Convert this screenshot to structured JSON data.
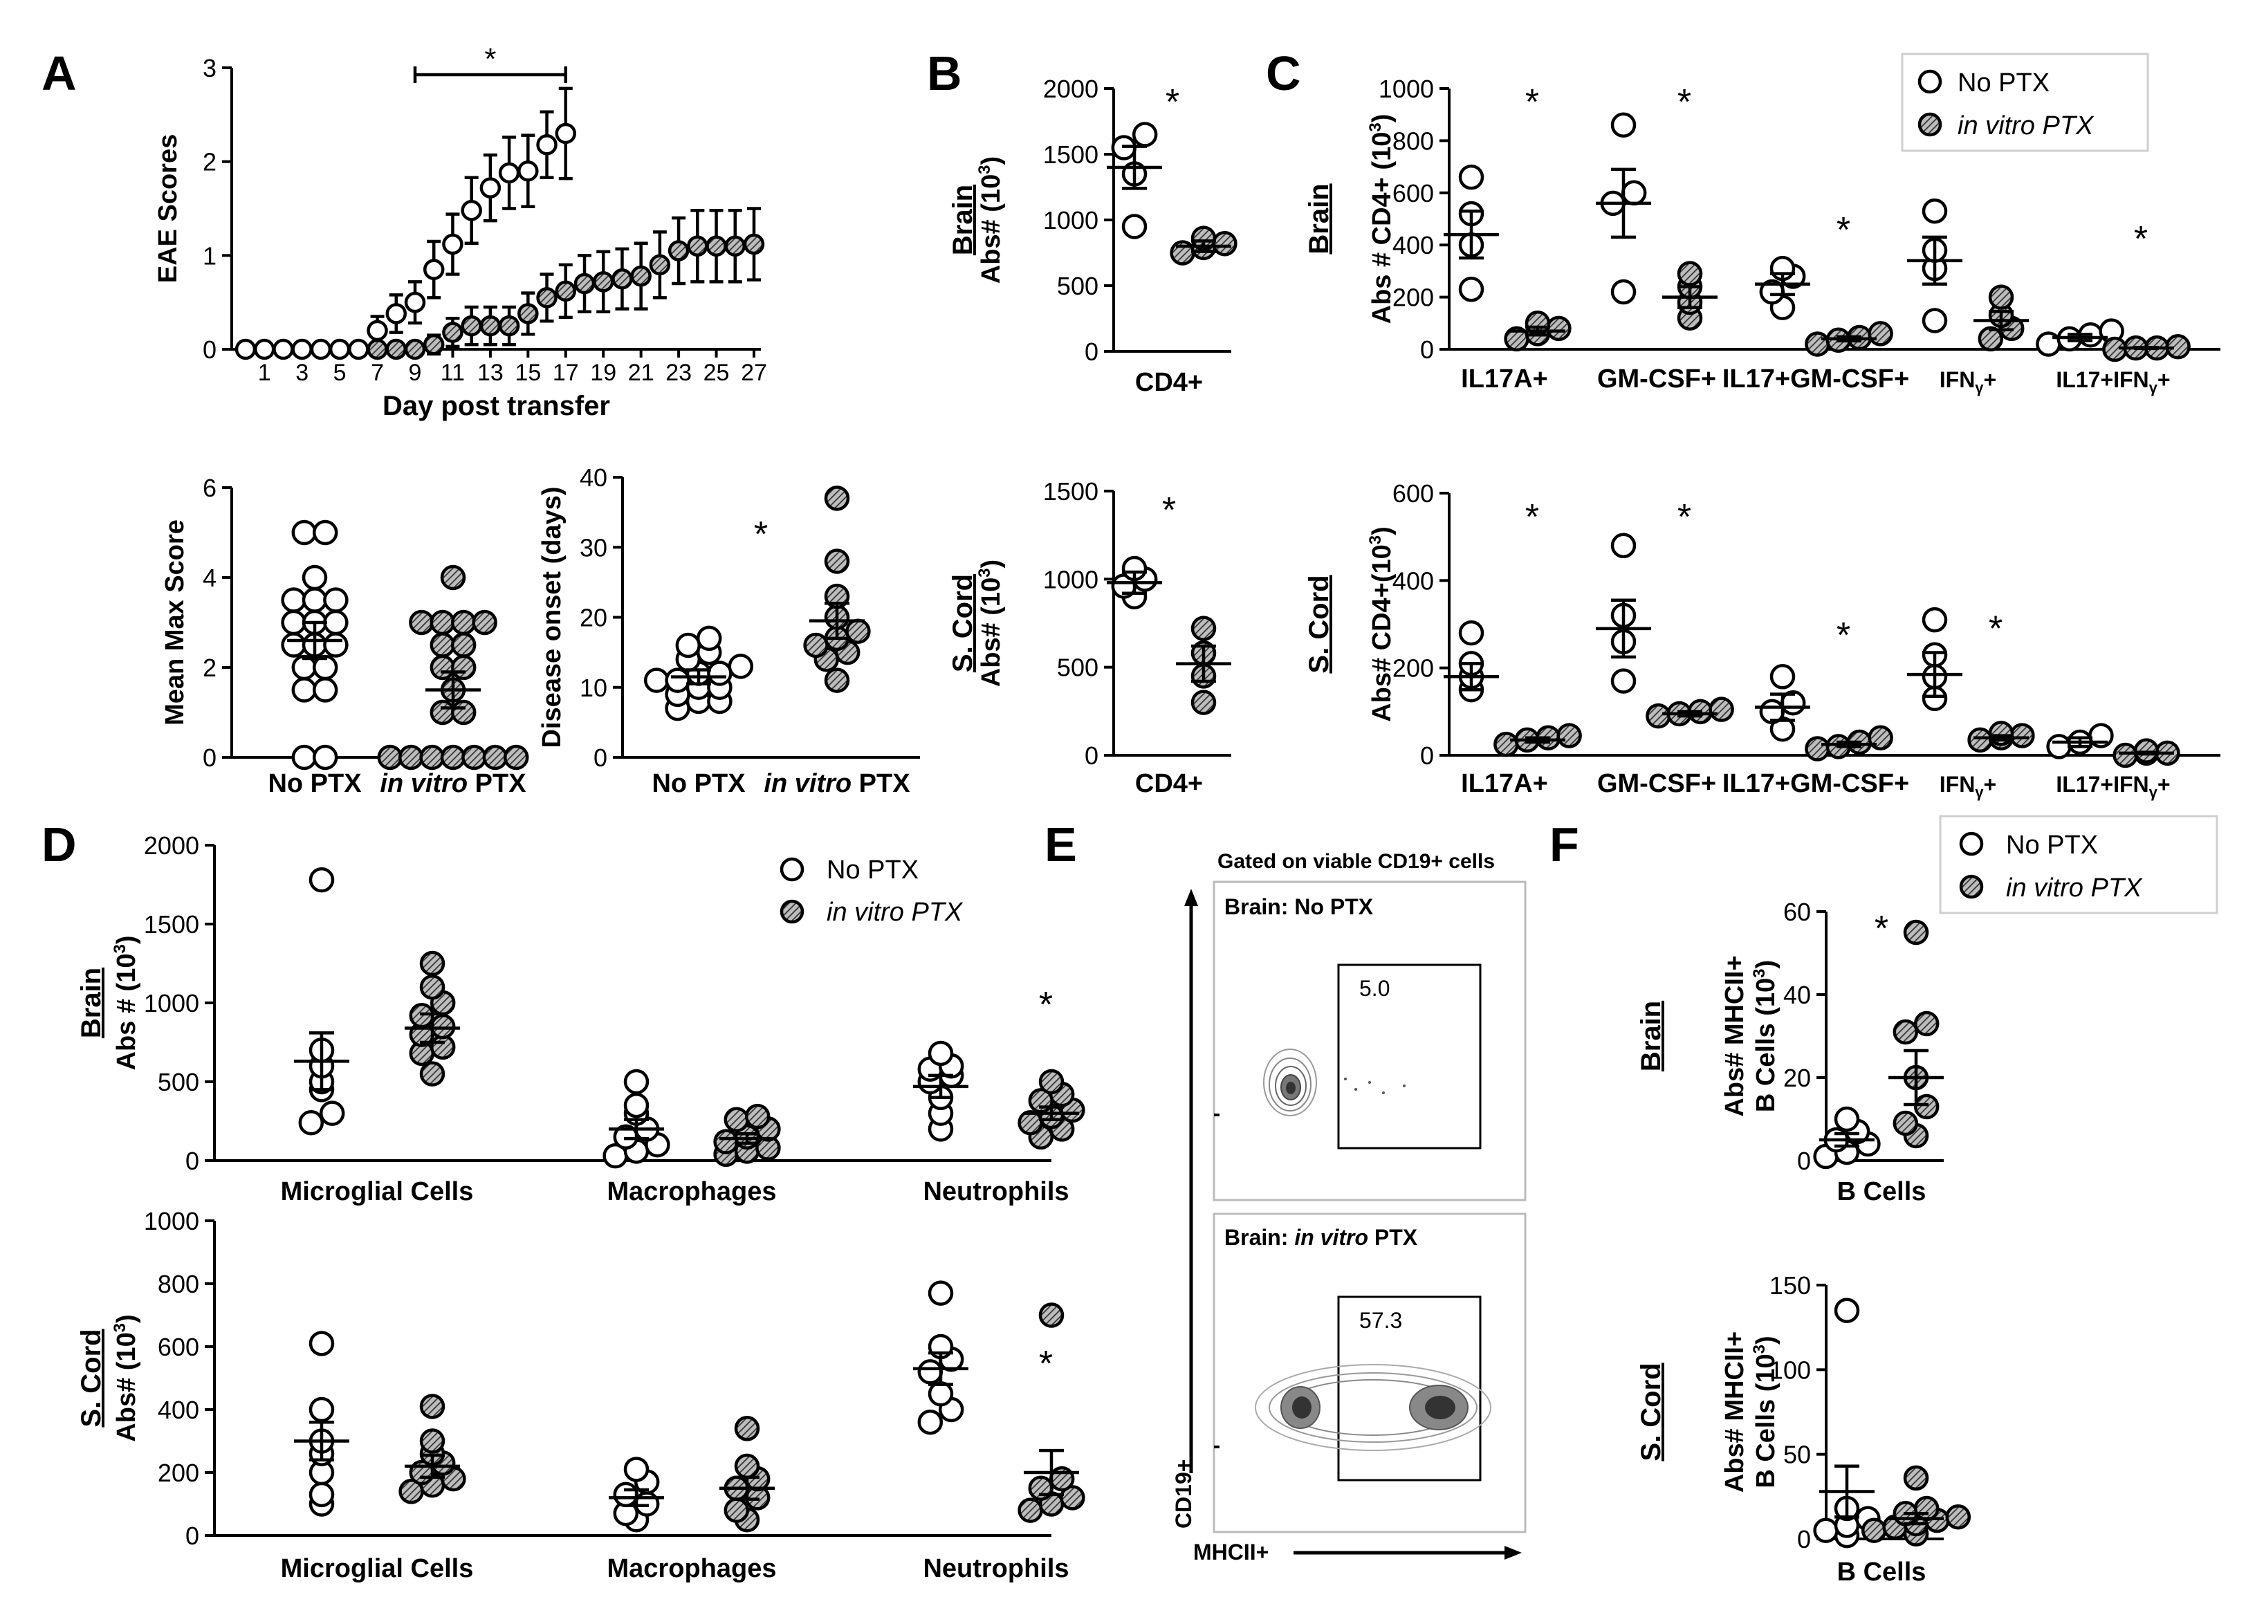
{
  "panel_letters": [
    "A",
    "B",
    "C",
    "D",
    "E",
    "F"
  ],
  "colors": {
    "open_marker": "#ffffff",
    "hatched_marker": "#5a5a5a",
    "ink": "#000000"
  },
  "legend": {
    "no_ptx": "No PTX",
    "in_vitro_ptx": "in vitro PTX"
  },
  "flow": {
    "title": "Gated on viable CD19+ cells",
    "top_label": "Brain: No PTX",
    "top_value": "5.0",
    "bottom_label": "Brain: in vitro PTX",
    "bottom_value": "57.3",
    "xlabel": "MHCII+",
    "ylabel": "CD19+"
  },
  "chart_data": [
    {
      "id": "A_time",
      "panel": "A",
      "type": "line",
      "xlabel": "Day post transfer",
      "ylabel": "EAE  Scores",
      "xticks": [
        "1",
        "3",
        "5",
        "7",
        "9",
        "11",
        "13",
        "15",
        "17",
        "19",
        "21",
        "23",
        "25",
        "27"
      ],
      "yticks": [
        "0",
        "1",
        "2",
        "3"
      ],
      "ylim": [
        0,
        3
      ],
      "series": [
        {
          "name": "No PTX",
          "marker": "open",
          "x": [
            0,
            1,
            2,
            3,
            4,
            5,
            6,
            7,
            8,
            9,
            10,
            11,
            12,
            13,
            14,
            15,
            16,
            17
          ],
          "y": [
            0,
            0,
            0,
            0,
            0,
            0,
            0,
            0.2,
            0.38,
            0.5,
            0.85,
            1.12,
            1.48,
            1.72,
            1.88,
            1.9,
            2.18,
            2.3
          ],
          "err": [
            0,
            0,
            0,
            0,
            0,
            0,
            0,
            0.15,
            0.2,
            0.22,
            0.3,
            0.32,
            0.35,
            0.35,
            0.38,
            0.38,
            0.35,
            0.48
          ]
        },
        {
          "name": "in vitro PTX",
          "marker": "hatched",
          "x": [
            7,
            8,
            9,
            10,
            11,
            12,
            13,
            14,
            15,
            16,
            17,
            18,
            19,
            20,
            21,
            22,
            23,
            24,
            25,
            26,
            27
          ],
          "y": [
            0,
            0,
            0,
            0.05,
            0.18,
            0.25,
            0.25,
            0.25,
            0.38,
            0.55,
            0.62,
            0.7,
            0.72,
            0.75,
            0.78,
            0.9,
            1.05,
            1.1,
            1.1,
            1.1,
            1.12
          ],
          "err": [
            0,
            0,
            0,
            0.1,
            0.15,
            0.2,
            0.2,
            0.2,
            0.22,
            0.25,
            0.28,
            0.3,
            0.32,
            0.32,
            0.35,
            0.35,
            0.35,
            0.38,
            0.38,
            0.38,
            0.38
          ]
        }
      ],
      "annotations": [
        {
          "text": "*",
          "x_from": 9,
          "x_to": 17
        }
      ]
    },
    {
      "id": "A_max",
      "panel": "A",
      "type": "scatter",
      "ylabel": "Mean Max  Score",
      "yticks": [
        "0",
        "2",
        "4",
        "6"
      ],
      "ylim": [
        0,
        6
      ],
      "categories": [
        "No PTX",
        "in vitro PTX"
      ],
      "groups": [
        {
          "category": "No PTX",
          "marker": "open",
          "mean": 2.6,
          "sem": 0.4,
          "values": [
            0,
            0,
            1.5,
            1.5,
            2,
            2,
            2.5,
            2.5,
            2.5,
            3,
            3,
            3,
            3.5,
            3.5,
            3.5,
            4,
            5,
            5
          ]
        },
        {
          "category": "in vitro PTX",
          "marker": "hatched",
          "mean": 1.5,
          "sem": 0.4,
          "values": [
            0,
            0,
            0,
            0,
            0,
            0,
            0,
            1,
            1,
            1.5,
            2,
            2,
            2.5,
            2.5,
            3,
            3,
            3,
            3,
            4
          ]
        }
      ]
    },
    {
      "id": "A_onset",
      "panel": "A",
      "type": "scatter",
      "ylabel": "Disease onset (days)",
      "yticks": [
        "0",
        "10",
        "20",
        "30",
        "40"
      ],
      "ylim": [
        0,
        40
      ],
      "categories": [
        "No PTX",
        "in vitro PTX"
      ],
      "star": "*",
      "groups": [
        {
          "category": "No PTX",
          "marker": "open",
          "mean": 11.5,
          "sem": 1,
          "values": [
            7,
            8,
            8,
            9,
            10,
            10,
            11,
            11,
            12,
            12,
            13,
            14,
            15,
            16,
            17
          ]
        },
        {
          "category": "in vitro PTX",
          "marker": "hatched",
          "mean": 19.5,
          "sem": 2.5,
          "values": [
            11,
            14,
            15,
            16,
            17,
            18,
            20,
            23,
            28,
            37
          ]
        }
      ]
    },
    {
      "id": "B_brain",
      "panel": "B",
      "type": "scatter",
      "region": "Brain",
      "ylabel": "Abs# (10",
      "yticks": [
        "0",
        "500",
        "1000",
        "1500",
        "2000"
      ],
      "ylim": [
        0,
        2000
      ],
      "categories": [
        "CD4+"
      ],
      "star": "*",
      "groups": [
        {
          "category": "CD4+",
          "marker": "open",
          "mean": 1400,
          "sem": 160,
          "values": [
            950,
            1350,
            1550,
            1650
          ]
        },
        {
          "category": "CD4+",
          "marker": "hatched",
          "mean": 800,
          "sem": 40,
          "values": [
            750,
            790,
            820,
            860
          ]
        }
      ]
    },
    {
      "id": "B_cord",
      "panel": "B",
      "type": "scatter",
      "region": "S. Cord",
      "ylabel": "Abs# (10",
      "yticks": [
        "0",
        "500",
        "1000",
        "1500"
      ],
      "ylim": [
        0,
        1500
      ],
      "categories": [
        "CD4+"
      ],
      "star": "*",
      "groups": [
        {
          "category": "CD4+",
          "marker": "open",
          "mean": 980,
          "sem": 60,
          "values": [
            900,
            960,
            1000,
            1060
          ]
        },
        {
          "category": "CD4+",
          "marker": "hatched",
          "mean": 520,
          "sem": 100,
          "values": [
            300,
            450,
            580,
            720
          ]
        }
      ]
    },
    {
      "id": "C_brain",
      "panel": "C",
      "type": "scatter",
      "region": "Brain",
      "ylabel": "Abs # CD4+ (10",
      "yticks": [
        "0",
        "200",
        "400",
        "600",
        "800",
        "1000"
      ],
      "ylim": [
        0,
        1000
      ],
      "categories": [
        "IL17A+",
        "GM-CSF+",
        "IL17+GM-CSF+",
        "IFN",
        "IL17+IFN"
      ],
      "stars": [
        true,
        true,
        true,
        false,
        true
      ],
      "groups": [
        {
          "category": "IL17A+",
          "marker": "open",
          "mean": 440,
          "sem": 90,
          "values": [
            230,
            400,
            520,
            660
          ]
        },
        {
          "category": "IL17A+",
          "marker": "hatched",
          "mean": 70,
          "sem": 15,
          "values": [
            40,
            60,
            80,
            100
          ]
        },
        {
          "category": "GM-CSF+",
          "marker": "open",
          "mean": 560,
          "sem": 130,
          "values": [
            220,
            560,
            600,
            860
          ]
        },
        {
          "category": "GM-CSF+",
          "marker": "hatched",
          "mean": 200,
          "sem": 40,
          "values": [
            120,
            180,
            240,
            290
          ]
        },
        {
          "category": "IL17+GM-CSF+",
          "marker": "open",
          "mean": 250,
          "sem": 40,
          "values": [
            160,
            220,
            280,
            310
          ]
        },
        {
          "category": "IL17+GM-CSF+",
          "marker": "hatched",
          "mean": 40,
          "sem": 8,
          "values": [
            20,
            35,
            45,
            60
          ]
        },
        {
          "category": "IFN",
          "marker": "open",
          "mean": 340,
          "sem": 90,
          "values": [
            110,
            310,
            380,
            530
          ]
        },
        {
          "category": "IFN",
          "marker": "hatched",
          "mean": 110,
          "sem": 35,
          "values": [
            40,
            80,
            130,
            200
          ]
        },
        {
          "category": "IL17+IFN",
          "marker": "open",
          "mean": 45,
          "sem": 12,
          "values": [
            20,
            40,
            55,
            70
          ]
        },
        {
          "category": "IL17+IFN",
          "marker": "hatched",
          "mean": 5,
          "sem": 2,
          "values": [
            0,
            5,
            5,
            10
          ]
        }
      ]
    },
    {
      "id": "C_cord",
      "panel": "C",
      "type": "scatter",
      "region": "S. Cord",
      "ylabel": "Abs# CD4+(10",
      "yticks": [
        "0",
        "200",
        "400",
        "600"
      ],
      "ylim": [
        0,
        600
      ],
      "categories": [
        "IL17A+",
        "GM-CSF+",
        "IL17+GM-CSF+",
        "IFN",
        "IL17+IFN"
      ],
      "stars": [
        true,
        true,
        true,
        true,
        false
      ],
      "groups": [
        {
          "category": "IL17A+",
          "marker": "open",
          "mean": 180,
          "sem": 30,
          "values": [
            150,
            180,
            210,
            280
          ]
        },
        {
          "category": "IL17A+",
          "marker": "hatched",
          "mean": 35,
          "sem": 5,
          "values": [
            25,
            35,
            40,
            45
          ]
        },
        {
          "category": "GM-CSF+",
          "marker": "open",
          "mean": 290,
          "sem": 65,
          "values": [
            170,
            260,
            320,
            480
          ]
        },
        {
          "category": "GM-CSF+",
          "marker": "hatched",
          "mean": 95,
          "sem": 5,
          "values": [
            90,
            95,
            100,
            105
          ]
        },
        {
          "category": "IL17+GM-CSF+",
          "marker": "open",
          "mean": 110,
          "sem": 30,
          "values": [
            60,
            100,
            120,
            180
          ]
        },
        {
          "category": "IL17+GM-CSF+",
          "marker": "hatched",
          "mean": 25,
          "sem": 5,
          "values": [
            15,
            20,
            30,
            40
          ]
        },
        {
          "category": "IFN",
          "marker": "open",
          "mean": 185,
          "sem": 50,
          "values": [
            130,
            180,
            230,
            310
          ]
        },
        {
          "category": "IFN",
          "marker": "hatched",
          "mean": 40,
          "sem": 5,
          "values": [
            35,
            40,
            45,
            50
          ]
        },
        {
          "category": "IL17+IFN",
          "marker": "open",
          "mean": 30,
          "sem": 10,
          "values": [
            20,
            30,
            45
          ]
        },
        {
          "category": "IL17+IFN",
          "marker": "hatched",
          "mean": 5,
          "sem": 2,
          "values": [
            0,
            5,
            5,
            10
          ]
        }
      ]
    },
    {
      "id": "D_brain",
      "panel": "D",
      "type": "scatter",
      "region": "Brain",
      "ylabel": "Abs # (10",
      "yticks": [
        "0",
        "500",
        "1000",
        "1500",
        "2000"
      ],
      "ylim": [
        0,
        2000
      ],
      "categories": [
        "Microglial Cells",
        "Macrophages",
        "Neutrophils"
      ],
      "stars": [
        false,
        false,
        true
      ],
      "groups": [
        {
          "category": "Microglial Cells",
          "marker": "open",
          "mean": 630,
          "sem": 180,
          "values": [
            240,
            300,
            450,
            500,
            600,
            700,
            1780
          ]
        },
        {
          "category": "Microglial Cells",
          "marker": "hatched",
          "mean": 840,
          "sem": 90,
          "values": [
            550,
            680,
            720,
            800,
            850,
            920,
            1000,
            1100,
            1250
          ]
        },
        {
          "category": "Macrophages",
          "marker": "open",
          "mean": 200,
          "sem": 60,
          "values": [
            30,
            60,
            100,
            150,
            200,
            300,
            350,
            500
          ]
        },
        {
          "category": "Macrophages",
          "marker": "hatched",
          "mean": 140,
          "sem": 30,
          "values": [
            40,
            60,
            80,
            120,
            150,
            200,
            260,
            280
          ]
        },
        {
          "category": "Neutrophils",
          "marker": "open",
          "mean": 470,
          "sem": 70,
          "values": [
            200,
            300,
            400,
            500,
            540,
            580,
            600,
            680
          ]
        },
        {
          "category": "Neutrophils",
          "marker": "hatched",
          "mean": 300,
          "sem": 40,
          "values": [
            150,
            200,
            240,
            280,
            320,
            380,
            420,
            500
          ]
        }
      ]
    },
    {
      "id": "D_cord",
      "panel": "D",
      "type": "scatter",
      "region": "S. Cord",
      "ylabel": "Abs# (10",
      "yticks": [
        "0",
        "200",
        "400",
        "600",
        "800",
        "1000"
      ],
      "ylim": [
        0,
        1000
      ],
      "categories": [
        "Microglial Cells",
        "Macrophages",
        "Neutrophils"
      ],
      "stars": [
        false,
        false,
        true
      ],
      "groups": [
        {
          "category": "Microglial Cells",
          "marker": "open",
          "mean": 300,
          "sem": 60,
          "values": [
            100,
            130,
            200,
            260,
            300,
            400,
            610
          ]
        },
        {
          "category": "Microglial Cells",
          "marker": "hatched",
          "mean": 220,
          "sem": 35,
          "values": [
            140,
            160,
            180,
            200,
            230,
            260,
            300,
            410
          ]
        },
        {
          "category": "Macrophages",
          "marker": "open",
          "mean": 120,
          "sem": 25,
          "values": [
            50,
            70,
            100,
            130,
            170,
            210
          ]
        },
        {
          "category": "Macrophages",
          "marker": "hatched",
          "mean": 150,
          "sem": 35,
          "values": [
            50,
            80,
            120,
            150,
            180,
            220,
            340
          ]
        },
        {
          "category": "Neutrophils",
          "marker": "open",
          "mean": 530,
          "sem": 50,
          "values": [
            360,
            400,
            450,
            520,
            560,
            600,
            770
          ]
        },
        {
          "category": "Neutrophils",
          "marker": "hatched",
          "mean": 200,
          "sem": 70,
          "values": [
            80,
            100,
            120,
            150,
            180,
            700
          ]
        }
      ]
    },
    {
      "id": "F_brain",
      "panel": "F",
      "type": "scatter",
      "region": "Brain",
      "ylabel": "Abs# MHCII+",
      "ylabel2": "B  Cells (10",
      "yticks": [
        "0",
        "20",
        "40",
        "60"
      ],
      "ylim": [
        0,
        60
      ],
      "categories": [
        "B  Cells"
      ],
      "star": "*",
      "groups": [
        {
          "category": "B  Cells",
          "marker": "open",
          "mean": 5,
          "sem": 1.5,
          "values": [
            1,
            2,
            4,
            5,
            7,
            10
          ]
        },
        {
          "category": "B  Cells",
          "marker": "hatched",
          "mean": 20,
          "sem": 6.5,
          "values": [
            6,
            9,
            13,
            20,
            31,
            33,
            55
          ]
        }
      ]
    },
    {
      "id": "F_cord",
      "panel": "F",
      "type": "scatter",
      "region": "S. Cord",
      "ylabel": "Abs# MHCII+",
      "ylabel2": "B  Cells (10",
      "yticks": [
        "0",
        "50",
        "100",
        "150"
      ],
      "ylim": [
        0,
        150
      ],
      "categories": [
        "B  Cells"
      ],
      "groups": [
        {
          "category": "B  Cells",
          "marker": "open",
          "mean": 28,
          "sem": 15,
          "values": [
            2,
            5,
            8,
            12,
            18,
            135
          ]
        },
        {
          "category": "B  Cells",
          "marker": "hatched",
          "mean": 12,
          "sem": 3,
          "values": [
            3,
            5,
            7,
            9,
            11,
            13,
            15,
            18,
            36
          ]
        }
      ]
    }
  ]
}
